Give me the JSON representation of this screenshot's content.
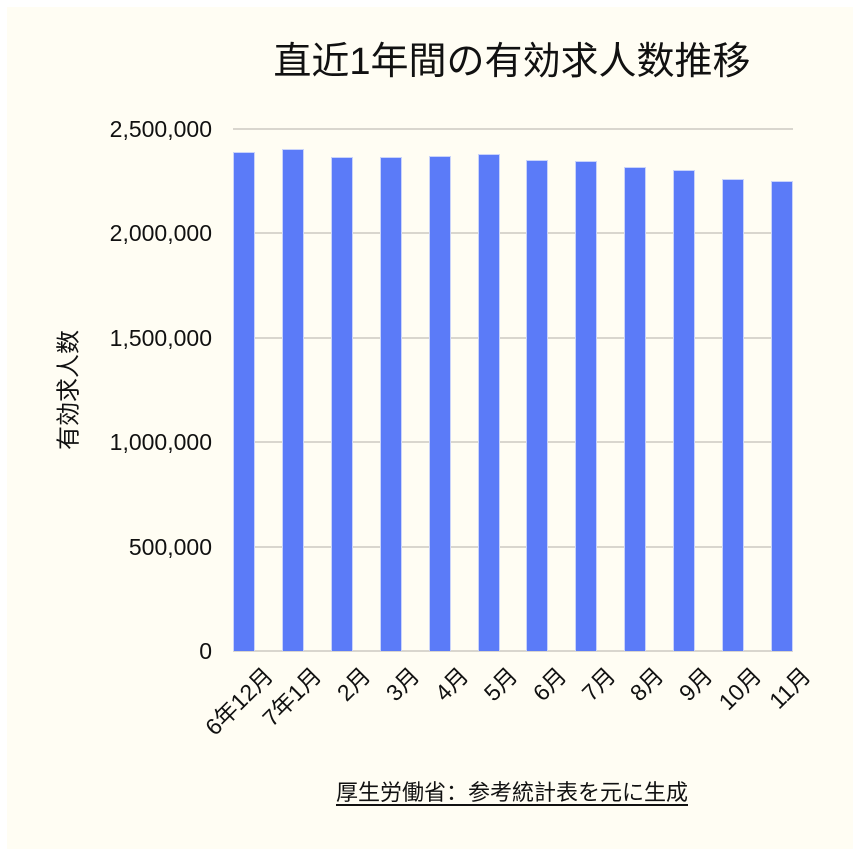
{
  "page": {
    "background": "#ffffff",
    "panel_background": "#fffdf3"
  },
  "chart_data": {
    "type": "bar",
    "title": "直近1年間の有効求人数推移",
    "xlabel": "",
    "ylabel": "有効求人数",
    "categories": [
      "6年12月",
      "7年1月",
      "2月",
      "3月",
      "4月",
      "5月",
      "6月",
      "7月",
      "8月",
      "9月",
      "10月",
      "11月"
    ],
    "values": [
      2392000,
      2405000,
      2364000,
      2368000,
      2372000,
      2381000,
      2352000,
      2346000,
      2320000,
      2306000,
      2263000,
      2253000
    ],
    "ylim": [
      0,
      2500000
    ],
    "yticks": [
      {
        "value": 0,
        "label": "0"
      },
      {
        "value": 500000,
        "label": "500,000"
      },
      {
        "value": 1000000,
        "label": "1,000,000"
      },
      {
        "value": 1500000,
        "label": "1,500,000"
      },
      {
        "value": 2000000,
        "label": "2,000,000"
      },
      {
        "value": 2500000,
        "label": "2,500,000"
      }
    ],
    "grid": true,
    "legend": false,
    "bar_color": "#5b7bf8",
    "bar_edge_color": "#c9d3fa",
    "gridline_color": "#d9d6ce",
    "source_note": "厚生労働省：参考統計表を元に生成"
  }
}
